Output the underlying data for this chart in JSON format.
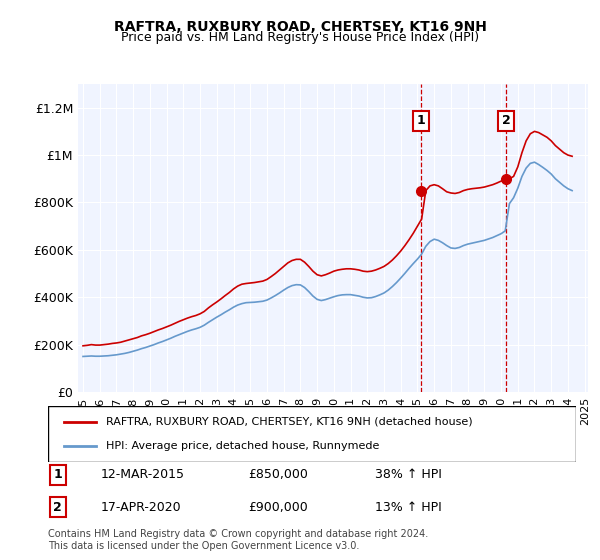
{
  "title": "RAFTRA, RUXBURY ROAD, CHERTSEY, KT16 9NH",
  "subtitle": "Price paid vs. HM Land Registry's House Price Index (HPI)",
  "background_color": "#f0f4ff",
  "plot_background": "#f0f4ff",
  "legend_line1": "RAFTRA, RUXBURY ROAD, CHERTSEY, KT16 9NH (detached house)",
  "legend_line2": "HPI: Average price, detached house, Runnymede",
  "footnote": "Contains HM Land Registry data © Crown copyright and database right 2024.\nThis data is licensed under the Open Government Licence v3.0.",
  "annotation1": {
    "label": "1",
    "date": "12-MAR-2015",
    "price": "£850,000",
    "change": "38% ↑ HPI"
  },
  "annotation2": {
    "label": "2",
    "date": "17-APR-2020",
    "price": "£900,000",
    "change": "13% ↑ HPI"
  },
  "red_color": "#cc0000",
  "blue_color": "#6699cc",
  "dashed_color": "#cc0000",
  "ylim": [
    0,
    1300000
  ],
  "yticks": [
    0,
    200000,
    400000,
    600000,
    800000,
    1000000,
    1200000
  ],
  "ytick_labels": [
    "£0",
    "£200K",
    "£400K",
    "£600K",
    "£800K",
    "£1M",
    "£1.2M"
  ],
  "red_x": [
    1995.0,
    1995.25,
    1995.5,
    1995.75,
    1996.0,
    1996.25,
    1996.5,
    1996.75,
    1997.0,
    1997.25,
    1997.5,
    1997.75,
    1998.0,
    1998.25,
    1998.5,
    1998.75,
    1999.0,
    1999.25,
    1999.5,
    1999.75,
    2000.0,
    2000.25,
    2000.5,
    2000.75,
    2001.0,
    2001.25,
    2001.5,
    2001.75,
    2002.0,
    2002.25,
    2002.5,
    2002.75,
    2003.0,
    2003.25,
    2003.5,
    2003.75,
    2004.0,
    2004.25,
    2004.5,
    2004.75,
    2005.0,
    2005.25,
    2005.5,
    2005.75,
    2006.0,
    2006.25,
    2006.5,
    2006.75,
    2007.0,
    2007.25,
    2007.5,
    2007.75,
    2008.0,
    2008.25,
    2008.5,
    2008.75,
    2009.0,
    2009.25,
    2009.5,
    2009.75,
    2010.0,
    2010.25,
    2010.5,
    2010.75,
    2011.0,
    2011.25,
    2011.5,
    2011.75,
    2012.0,
    2012.25,
    2012.5,
    2012.75,
    2013.0,
    2013.25,
    2013.5,
    2013.75,
    2014.0,
    2014.25,
    2014.5,
    2014.75,
    2015.0,
    2015.25,
    2015.5,
    2015.75,
    2016.0,
    2016.25,
    2016.5,
    2016.75,
    2017.0,
    2017.25,
    2017.5,
    2017.75,
    2018.0,
    2018.25,
    2018.5,
    2018.75,
    2019.0,
    2019.25,
    2019.5,
    2019.75,
    2020.0,
    2020.25,
    2020.5,
    2020.75,
    2021.0,
    2021.25,
    2021.5,
    2021.75,
    2022.0,
    2022.25,
    2022.5,
    2022.75,
    2023.0,
    2023.25,
    2023.5,
    2023.75,
    2024.0,
    2024.25
  ],
  "red_y": [
    195000,
    197000,
    200000,
    198000,
    198000,
    200000,
    202000,
    205000,
    207000,
    210000,
    215000,
    220000,
    225000,
    230000,
    237000,
    242000,
    248000,
    255000,
    262000,
    268000,
    275000,
    282000,
    290000,
    298000,
    305000,
    312000,
    318000,
    323000,
    330000,
    340000,
    355000,
    368000,
    380000,
    393000,
    407000,
    420000,
    435000,
    447000,
    455000,
    458000,
    460000,
    462000,
    465000,
    468000,
    475000,
    487000,
    500000,
    515000,
    530000,
    545000,
    555000,
    560000,
    560000,
    548000,
    530000,
    510000,
    495000,
    490000,
    495000,
    502000,
    510000,
    515000,
    518000,
    520000,
    520000,
    518000,
    515000,
    510000,
    508000,
    510000,
    515000,
    522000,
    530000,
    542000,
    557000,
    575000,
    595000,
    618000,
    643000,
    670000,
    700000,
    730000,
    850000,
    870000,
    875000,
    870000,
    858000,
    845000,
    840000,
    838000,
    842000,
    850000,
    855000,
    858000,
    860000,
    862000,
    865000,
    870000,
    875000,
    882000,
    890000,
    895000,
    900000,
    910000,
    950000,
    1010000,
    1060000,
    1090000,
    1100000,
    1095000,
    1085000,
    1075000,
    1060000,
    1040000,
    1025000,
    1010000,
    1000000,
    995000
  ],
  "blue_x": [
    1995.0,
    1995.25,
    1995.5,
    1995.75,
    1996.0,
    1996.25,
    1996.5,
    1996.75,
    1997.0,
    1997.25,
    1997.5,
    1997.75,
    1998.0,
    1998.25,
    1998.5,
    1998.75,
    1999.0,
    1999.25,
    1999.5,
    1999.75,
    2000.0,
    2000.25,
    2000.5,
    2000.75,
    2001.0,
    2001.25,
    2001.5,
    2001.75,
    2002.0,
    2002.25,
    2002.5,
    2002.75,
    2003.0,
    2003.25,
    2003.5,
    2003.75,
    2004.0,
    2004.25,
    2004.5,
    2004.75,
    2005.0,
    2005.25,
    2005.5,
    2005.75,
    2006.0,
    2006.25,
    2006.5,
    2006.75,
    2007.0,
    2007.25,
    2007.5,
    2007.75,
    2008.0,
    2008.25,
    2008.5,
    2008.75,
    2009.0,
    2009.25,
    2009.5,
    2009.75,
    2010.0,
    2010.25,
    2010.5,
    2010.75,
    2011.0,
    2011.25,
    2011.5,
    2011.75,
    2012.0,
    2012.25,
    2012.5,
    2012.75,
    2013.0,
    2013.25,
    2013.5,
    2013.75,
    2014.0,
    2014.25,
    2014.5,
    2014.75,
    2015.0,
    2015.25,
    2015.5,
    2015.75,
    2016.0,
    2016.25,
    2016.5,
    2016.75,
    2017.0,
    2017.25,
    2017.5,
    2017.75,
    2018.0,
    2018.25,
    2018.5,
    2018.75,
    2019.0,
    2019.25,
    2019.5,
    2019.75,
    2020.0,
    2020.25,
    2020.5,
    2020.75,
    2021.0,
    2021.25,
    2021.5,
    2021.75,
    2022.0,
    2022.25,
    2022.5,
    2022.75,
    2023.0,
    2023.25,
    2023.5,
    2023.75,
    2024.0,
    2024.25
  ],
  "blue_y": [
    150000,
    151000,
    152000,
    151000,
    151000,
    152000,
    153000,
    155000,
    157000,
    160000,
    163000,
    167000,
    172000,
    177000,
    183000,
    188000,
    194000,
    200000,
    207000,
    213000,
    220000,
    227000,
    235000,
    242000,
    249000,
    256000,
    262000,
    267000,
    273000,
    282000,
    294000,
    305000,
    316000,
    326000,
    337000,
    347000,
    358000,
    367000,
    373000,
    377000,
    378000,
    379000,
    381000,
    383000,
    388000,
    397000,
    407000,
    418000,
    430000,
    441000,
    449000,
    453000,
    452000,
    441000,
    424000,
    405000,
    391000,
    386000,
    390000,
    396000,
    402000,
    407000,
    410000,
    411000,
    411000,
    408000,
    405000,
    400000,
    397000,
    398000,
    403000,
    410000,
    418000,
    430000,
    445000,
    462000,
    481000,
    501000,
    522000,
    542000,
    561000,
    582000,
    615000,
    635000,
    645000,
    640000,
    630000,
    618000,
    608000,
    606000,
    610000,
    618000,
    624000,
    628000,
    632000,
    636000,
    640000,
    646000,
    652000,
    660000,
    668000,
    680000,
    795000,
    820000,
    860000,
    910000,
    945000,
    965000,
    970000,
    960000,
    948000,
    935000,
    920000,
    900000,
    885000,
    870000,
    858000,
    850000
  ],
  "sale1_x": 2015.2,
  "sale1_y": 850000,
  "sale2_x": 2020.3,
  "sale2_y": 900000,
  "vline1_x": 2015.2,
  "vline2_x": 2020.3,
  "xtick_years": [
    1995,
    1996,
    1997,
    1998,
    1999,
    2000,
    2001,
    2002,
    2003,
    2004,
    2005,
    2006,
    2007,
    2008,
    2009,
    2010,
    2011,
    2012,
    2013,
    2014,
    2015,
    2016,
    2017,
    2018,
    2019,
    2020,
    2021,
    2022,
    2023,
    2024,
    2025
  ]
}
